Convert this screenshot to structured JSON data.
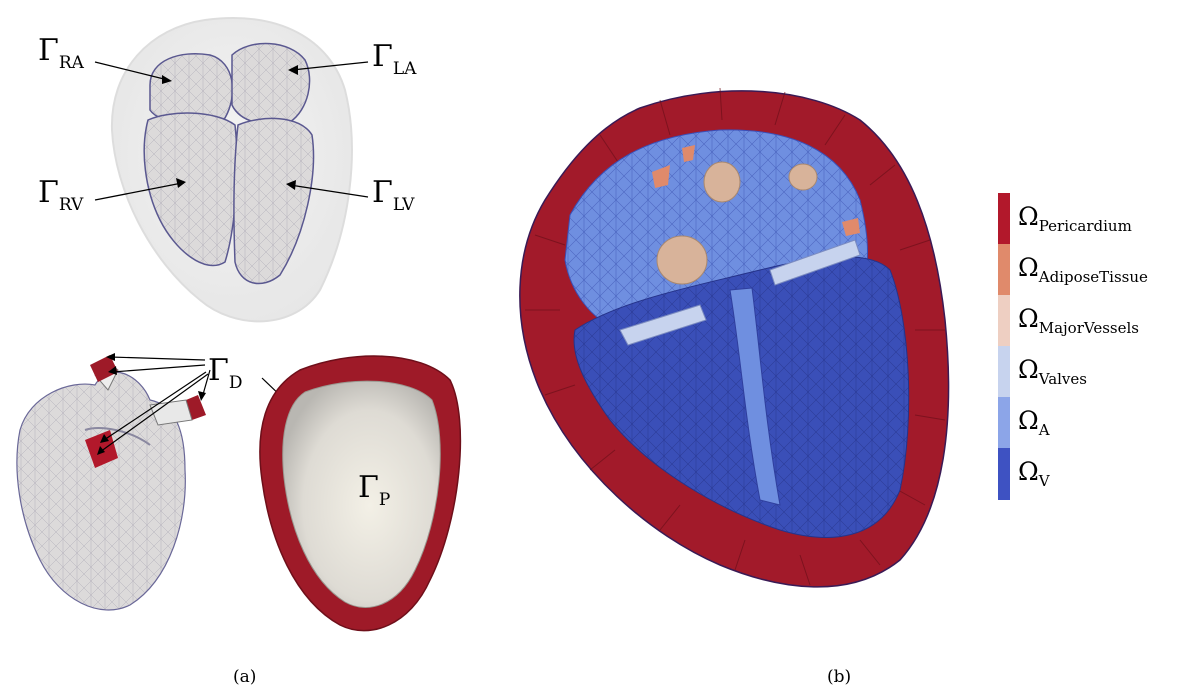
{
  "panel_a": {
    "caption": "(a)",
    "labels": {
      "ra": {
        "sym": "Γ",
        "sub": "RA"
      },
      "la": {
        "sym": "Γ",
        "sub": "LA"
      },
      "rv": {
        "sym": "Γ",
        "sub": "RV"
      },
      "lv": {
        "sym": "Γ",
        "sub": "LV"
      },
      "d": {
        "sym": "Γ",
        "sub": "D"
      },
      "p": {
        "sym": "Γ",
        "sub": "P"
      }
    }
  },
  "panel_b": {
    "caption": "(b)",
    "legend": [
      {
        "sym": "Ω",
        "sub": "Pericardium",
        "color": "#b2182b"
      },
      {
        "sym": "Ω",
        "sub": "AdiposeTissue",
        "color": "#e08a6b"
      },
      {
        "sym": "Ω",
        "sub": "MajorVessels",
        "color": "#eecfc2"
      },
      {
        "sym": "Ω",
        "sub": "Valves",
        "color": "#c7d3ee"
      },
      {
        "sym": "Ω",
        "sub": "A",
        "color": "#8ca5e8"
      },
      {
        "sym": "Ω",
        "sub": "V",
        "color": "#3e52c2"
      }
    ]
  },
  "colors": {
    "myocardium_surface": "#dedcdc",
    "pericardium_shell": "#ececec",
    "pericardium_red": "#9e1a28",
    "pericardium_inner": "#efece4",
    "ventricle_blue": "#3a4fb8",
    "atrium_blue": "#6f8fe0",
    "vessel_tan": "#d8b39a"
  }
}
